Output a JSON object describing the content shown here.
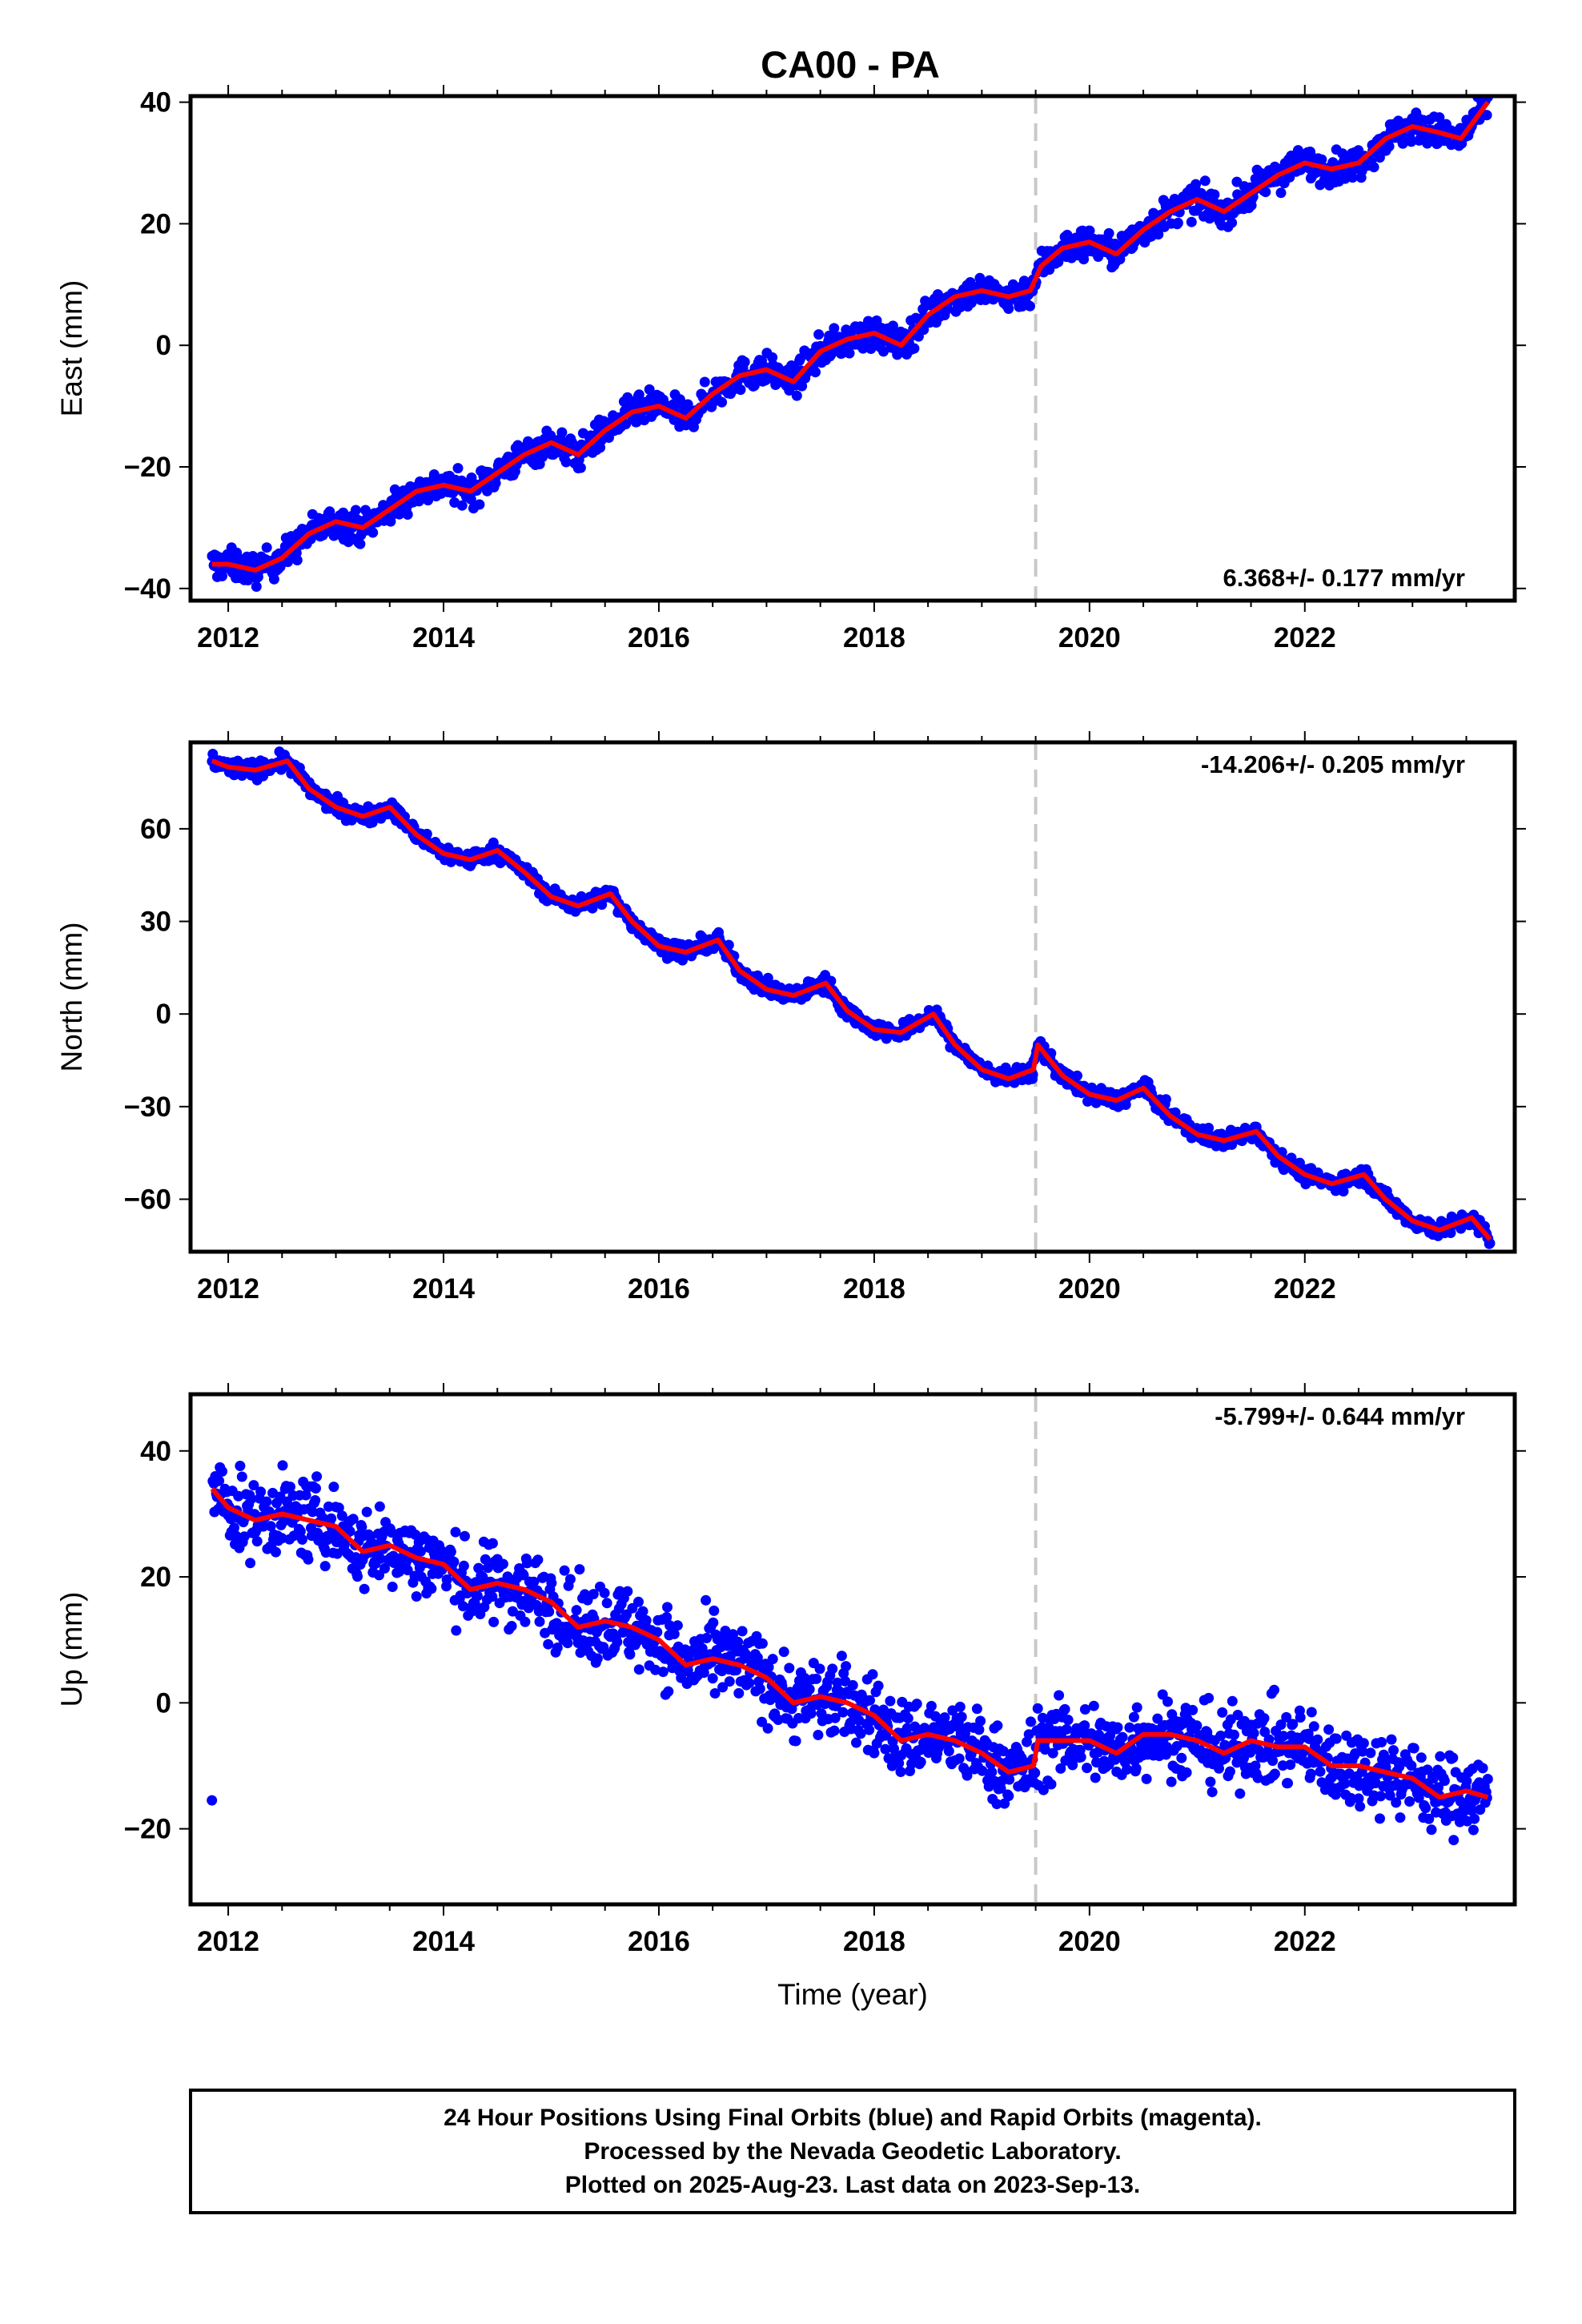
{
  "title": "CA00 - PA",
  "colors": {
    "final_orbits": "#0000ff",
    "model_fit": "#ff0000",
    "event_line": "#c8c8c8",
    "frame": "#000000"
  },
  "footer": {
    "line1": "24 Hour Positions Using Final Orbits (blue) and Rapid Orbits (magenta).",
    "line2": "Processed by the Nevada Geodetic Laboratory.",
    "line3": "Plotted on 2025-Aug-23. Last data on 2023-Sep-13."
  },
  "chart_data": [
    {
      "type": "scatter",
      "panel": "east",
      "title": "",
      "xlabel": "",
      "ylabel": "East (mm)",
      "xlim": [
        2011.65,
        2023.95
      ],
      "ylim": [
        -42,
        41
      ],
      "xticks": [
        2012,
        2014,
        2016,
        2018,
        2020,
        2022
      ],
      "yticks": [
        -40,
        -20,
        0,
        20,
        40
      ],
      "event_line_x": 2019.5,
      "rate_label": "6.368+/- 0.177 mm/yr",
      "rate_position": "bottom-right",
      "series": [
        {
          "kind": "points",
          "color": "#0000ff",
          "x": [
            2011.85,
            2012.0,
            2012.25,
            2012.5,
            2012.75,
            2013.0,
            2013.25,
            2013.5,
            2013.75,
            2014.0,
            2014.25,
            2014.5,
            2014.75,
            2015.0,
            2015.25,
            2015.5,
            2015.75,
            2016.0,
            2016.25,
            2016.5,
            2016.75,
            2017.0,
            2017.25,
            2017.5,
            2017.75,
            2018.0,
            2018.25,
            2018.5,
            2018.75,
            2019.0,
            2019.25,
            2019.45,
            2019.55,
            2019.75,
            2020.0,
            2020.25,
            2020.5,
            2020.75,
            2021.0,
            2021.25,
            2021.5,
            2021.75,
            2022.0,
            2022.25,
            2022.5,
            2022.75,
            2023.0,
            2023.25,
            2023.45,
            2023.7
          ],
          "y": [
            -36,
            -36,
            -37,
            -35,
            -31,
            -29,
            -30,
            -27,
            -24,
            -23,
            -24,
            -21,
            -18,
            -16,
            -18,
            -14,
            -11,
            -10,
            -12,
            -8,
            -5,
            -4,
            -6,
            -1,
            1,
            2,
            0,
            5,
            8,
            9,
            8,
            9,
            13,
            16,
            17,
            15,
            19,
            22,
            24,
            22,
            25,
            28,
            30,
            29,
            30,
            34,
            36,
            35,
            34,
            40
          ],
          "spread": 1.8
        },
        {
          "kind": "line",
          "color": "#ff0000",
          "x": [
            2011.85,
            2012.0,
            2012.25,
            2012.5,
            2012.75,
            2013.0,
            2013.25,
            2013.5,
            2013.75,
            2014.0,
            2014.25,
            2014.5,
            2014.75,
            2015.0,
            2015.25,
            2015.5,
            2015.75,
            2016.0,
            2016.25,
            2016.5,
            2016.75,
            2017.0,
            2017.25,
            2017.5,
            2017.75,
            2018.0,
            2018.25,
            2018.5,
            2018.75,
            2019.0,
            2019.25,
            2019.45,
            2019.55,
            2019.75,
            2020.0,
            2020.25,
            2020.5,
            2020.75,
            2021.0,
            2021.25,
            2021.5,
            2021.75,
            2022.0,
            2022.25,
            2022.5,
            2022.75,
            2023.0,
            2023.25,
            2023.45,
            2023.7
          ],
          "y": [
            -36,
            -36,
            -37,
            -35,
            -31,
            -29,
            -30,
            -27,
            -24,
            -23,
            -24,
            -21,
            -18,
            -16,
            -18,
            -14,
            -11,
            -10,
            -12,
            -8,
            -5,
            -4,
            -6,
            -1,
            1,
            2,
            0,
            5,
            8,
            9,
            8,
            9,
            13,
            16,
            17,
            15,
            19,
            22,
            24,
            22,
            25,
            28,
            30,
            29,
            30,
            34,
            36,
            35,
            34,
            40
          ]
        }
      ]
    },
    {
      "type": "scatter",
      "panel": "north",
      "title": "",
      "xlabel": "",
      "ylabel": "North (mm)",
      "xlim": [
        2011.65,
        2023.95
      ],
      "ylim": [
        -77,
        88
      ],
      "xticks": [
        2012,
        2014,
        2016,
        2018,
        2020,
        2022
      ],
      "yticks": [
        -60,
        -30,
        0,
        30,
        60
      ],
      "event_line_x": 2019.5,
      "rate_label": "-14.206+/- 0.205 mm/yr",
      "rate_position": "top-right",
      "series": [
        {
          "kind": "points",
          "color": "#0000ff",
          "x": [
            2011.85,
            2012.0,
            2012.25,
            2012.55,
            2012.75,
            2013.0,
            2013.25,
            2013.5,
            2013.75,
            2014.0,
            2014.25,
            2014.5,
            2014.75,
            2015.0,
            2015.25,
            2015.55,
            2015.75,
            2016.0,
            2016.25,
            2016.55,
            2016.75,
            2017.0,
            2017.25,
            2017.55,
            2017.75,
            2018.0,
            2018.25,
            2018.55,
            2018.75,
            2019.0,
            2019.25,
            2019.48,
            2019.52,
            2019.75,
            2020.0,
            2020.25,
            2020.5,
            2020.75,
            2021.0,
            2021.25,
            2021.55,
            2021.75,
            2022.0,
            2022.25,
            2022.55,
            2022.75,
            2023.0,
            2023.25,
            2023.55,
            2023.72
          ],
          "y": [
            82,
            80,
            79,
            82,
            73,
            67,
            64,
            67,
            58,
            52,
            50,
            53,
            46,
            38,
            35,
            39,
            30,
            22,
            20,
            24,
            14,
            8,
            6,
            10,
            1,
            -5,
            -6,
            0,
            -10,
            -18,
            -21,
            -18,
            -10,
            -20,
            -26,
            -28,
            -24,
            -33,
            -39,
            -41,
            -38,
            -46,
            -52,
            -55,
            -52,
            -60,
            -67,
            -70,
            -66,
            -73
          ],
          "spread": 1.9
        },
        {
          "kind": "line",
          "color": "#ff0000",
          "x": [
            2011.85,
            2012.0,
            2012.25,
            2012.55,
            2012.75,
            2013.0,
            2013.25,
            2013.5,
            2013.75,
            2014.0,
            2014.25,
            2014.5,
            2014.75,
            2015.0,
            2015.25,
            2015.55,
            2015.75,
            2016.0,
            2016.25,
            2016.55,
            2016.75,
            2017.0,
            2017.25,
            2017.55,
            2017.75,
            2018.0,
            2018.25,
            2018.55,
            2018.75,
            2019.0,
            2019.25,
            2019.48,
            2019.52,
            2019.75,
            2020.0,
            2020.25,
            2020.5,
            2020.75,
            2021.0,
            2021.25,
            2021.55,
            2021.75,
            2022.0,
            2022.25,
            2022.55,
            2022.75,
            2023.0,
            2023.25,
            2023.55,
            2023.72
          ],
          "y": [
            82,
            80,
            79,
            82,
            73,
            67,
            64,
            67,
            58,
            52,
            50,
            53,
            46,
            38,
            35,
            39,
            30,
            22,
            20,
            24,
            14,
            8,
            6,
            10,
            1,
            -5,
            -6,
            0,
            -10,
            -18,
            -21,
            -18,
            -10,
            -20,
            -26,
            -28,
            -24,
            -33,
            -39,
            -41,
            -38,
            -46,
            -52,
            -55,
            -52,
            -60,
            -67,
            -70,
            -66,
            -73
          ]
        }
      ]
    },
    {
      "type": "scatter",
      "panel": "up",
      "title": "",
      "xlabel": "Time (year)",
      "ylabel": "Up (mm)",
      "xlim": [
        2011.65,
        2023.95
      ],
      "ylim": [
        -32,
        49
      ],
      "xticks": [
        2012,
        2014,
        2016,
        2018,
        2020,
        2022
      ],
      "yticks": [
        -20,
        0,
        20,
        40
      ],
      "event_line_x": 2019.5,
      "rate_label": "-5.799+/- 0.644 mm/yr",
      "rate_position": "top-right",
      "series": [
        {
          "kind": "points",
          "color": "#0000ff",
          "x": [
            2011.85,
            2012.0,
            2012.25,
            2012.5,
            2012.75,
            2013.0,
            2013.25,
            2013.5,
            2013.75,
            2014.0,
            2014.25,
            2014.5,
            2014.75,
            2015.0,
            2015.25,
            2015.5,
            2015.75,
            2016.0,
            2016.25,
            2016.5,
            2016.75,
            2017.0,
            2017.25,
            2017.5,
            2017.75,
            2018.0,
            2018.25,
            2018.5,
            2018.75,
            2019.0,
            2019.25,
            2019.48,
            2019.52,
            2019.75,
            2020.0,
            2020.25,
            2020.5,
            2020.75,
            2021.0,
            2021.25,
            2021.5,
            2021.75,
            2022.0,
            2022.25,
            2022.5,
            2022.75,
            2023.0,
            2023.25,
            2023.5,
            2023.7
          ],
          "y": [
            34,
            31,
            29,
            30,
            29,
            28,
            24,
            25,
            23,
            22,
            18,
            19,
            18,
            16,
            12,
            13,
            12,
            10,
            6,
            7,
            6,
            4,
            0,
            1,
            0,
            -2,
            -6,
            -5,
            -6,
            -8,
            -11,
            -10,
            -6,
            -6,
            -6,
            -8,
            -5,
            -5,
            -6,
            -8,
            -6,
            -7,
            -7,
            -10,
            -10,
            -11,
            -12,
            -15,
            -14,
            -15
          ],
          "spread": 4.5
        },
        {
          "kind": "line",
          "color": "#ff0000",
          "x": [
            2011.85,
            2012.0,
            2012.25,
            2012.5,
            2012.75,
            2013.0,
            2013.25,
            2013.5,
            2013.75,
            2014.0,
            2014.25,
            2014.5,
            2014.75,
            2015.0,
            2015.25,
            2015.5,
            2015.75,
            2016.0,
            2016.25,
            2016.5,
            2016.75,
            2017.0,
            2017.25,
            2017.5,
            2017.75,
            2018.0,
            2018.25,
            2018.5,
            2018.75,
            2019.0,
            2019.25,
            2019.48,
            2019.52,
            2019.75,
            2020.0,
            2020.25,
            2020.5,
            2020.75,
            2021.0,
            2021.25,
            2021.5,
            2021.75,
            2022.0,
            2022.25,
            2022.5,
            2022.75,
            2023.0,
            2023.25,
            2023.5,
            2023.7
          ],
          "y": [
            34,
            31,
            29,
            30,
            29,
            28,
            24,
            25,
            23,
            22,
            18,
            19,
            18,
            16,
            12,
            13,
            12,
            10,
            6,
            7,
            6,
            4,
            0,
            1,
            0,
            -2,
            -6,
            -5,
            -6,
            -8,
            -11,
            -10,
            -6,
            -6,
            -6,
            -8,
            -5,
            -5,
            -6,
            -8,
            -6,
            -7,
            -7,
            -10,
            -10,
            -11,
            -12,
            -15,
            -14,
            -15
          ]
        }
      ]
    }
  ]
}
